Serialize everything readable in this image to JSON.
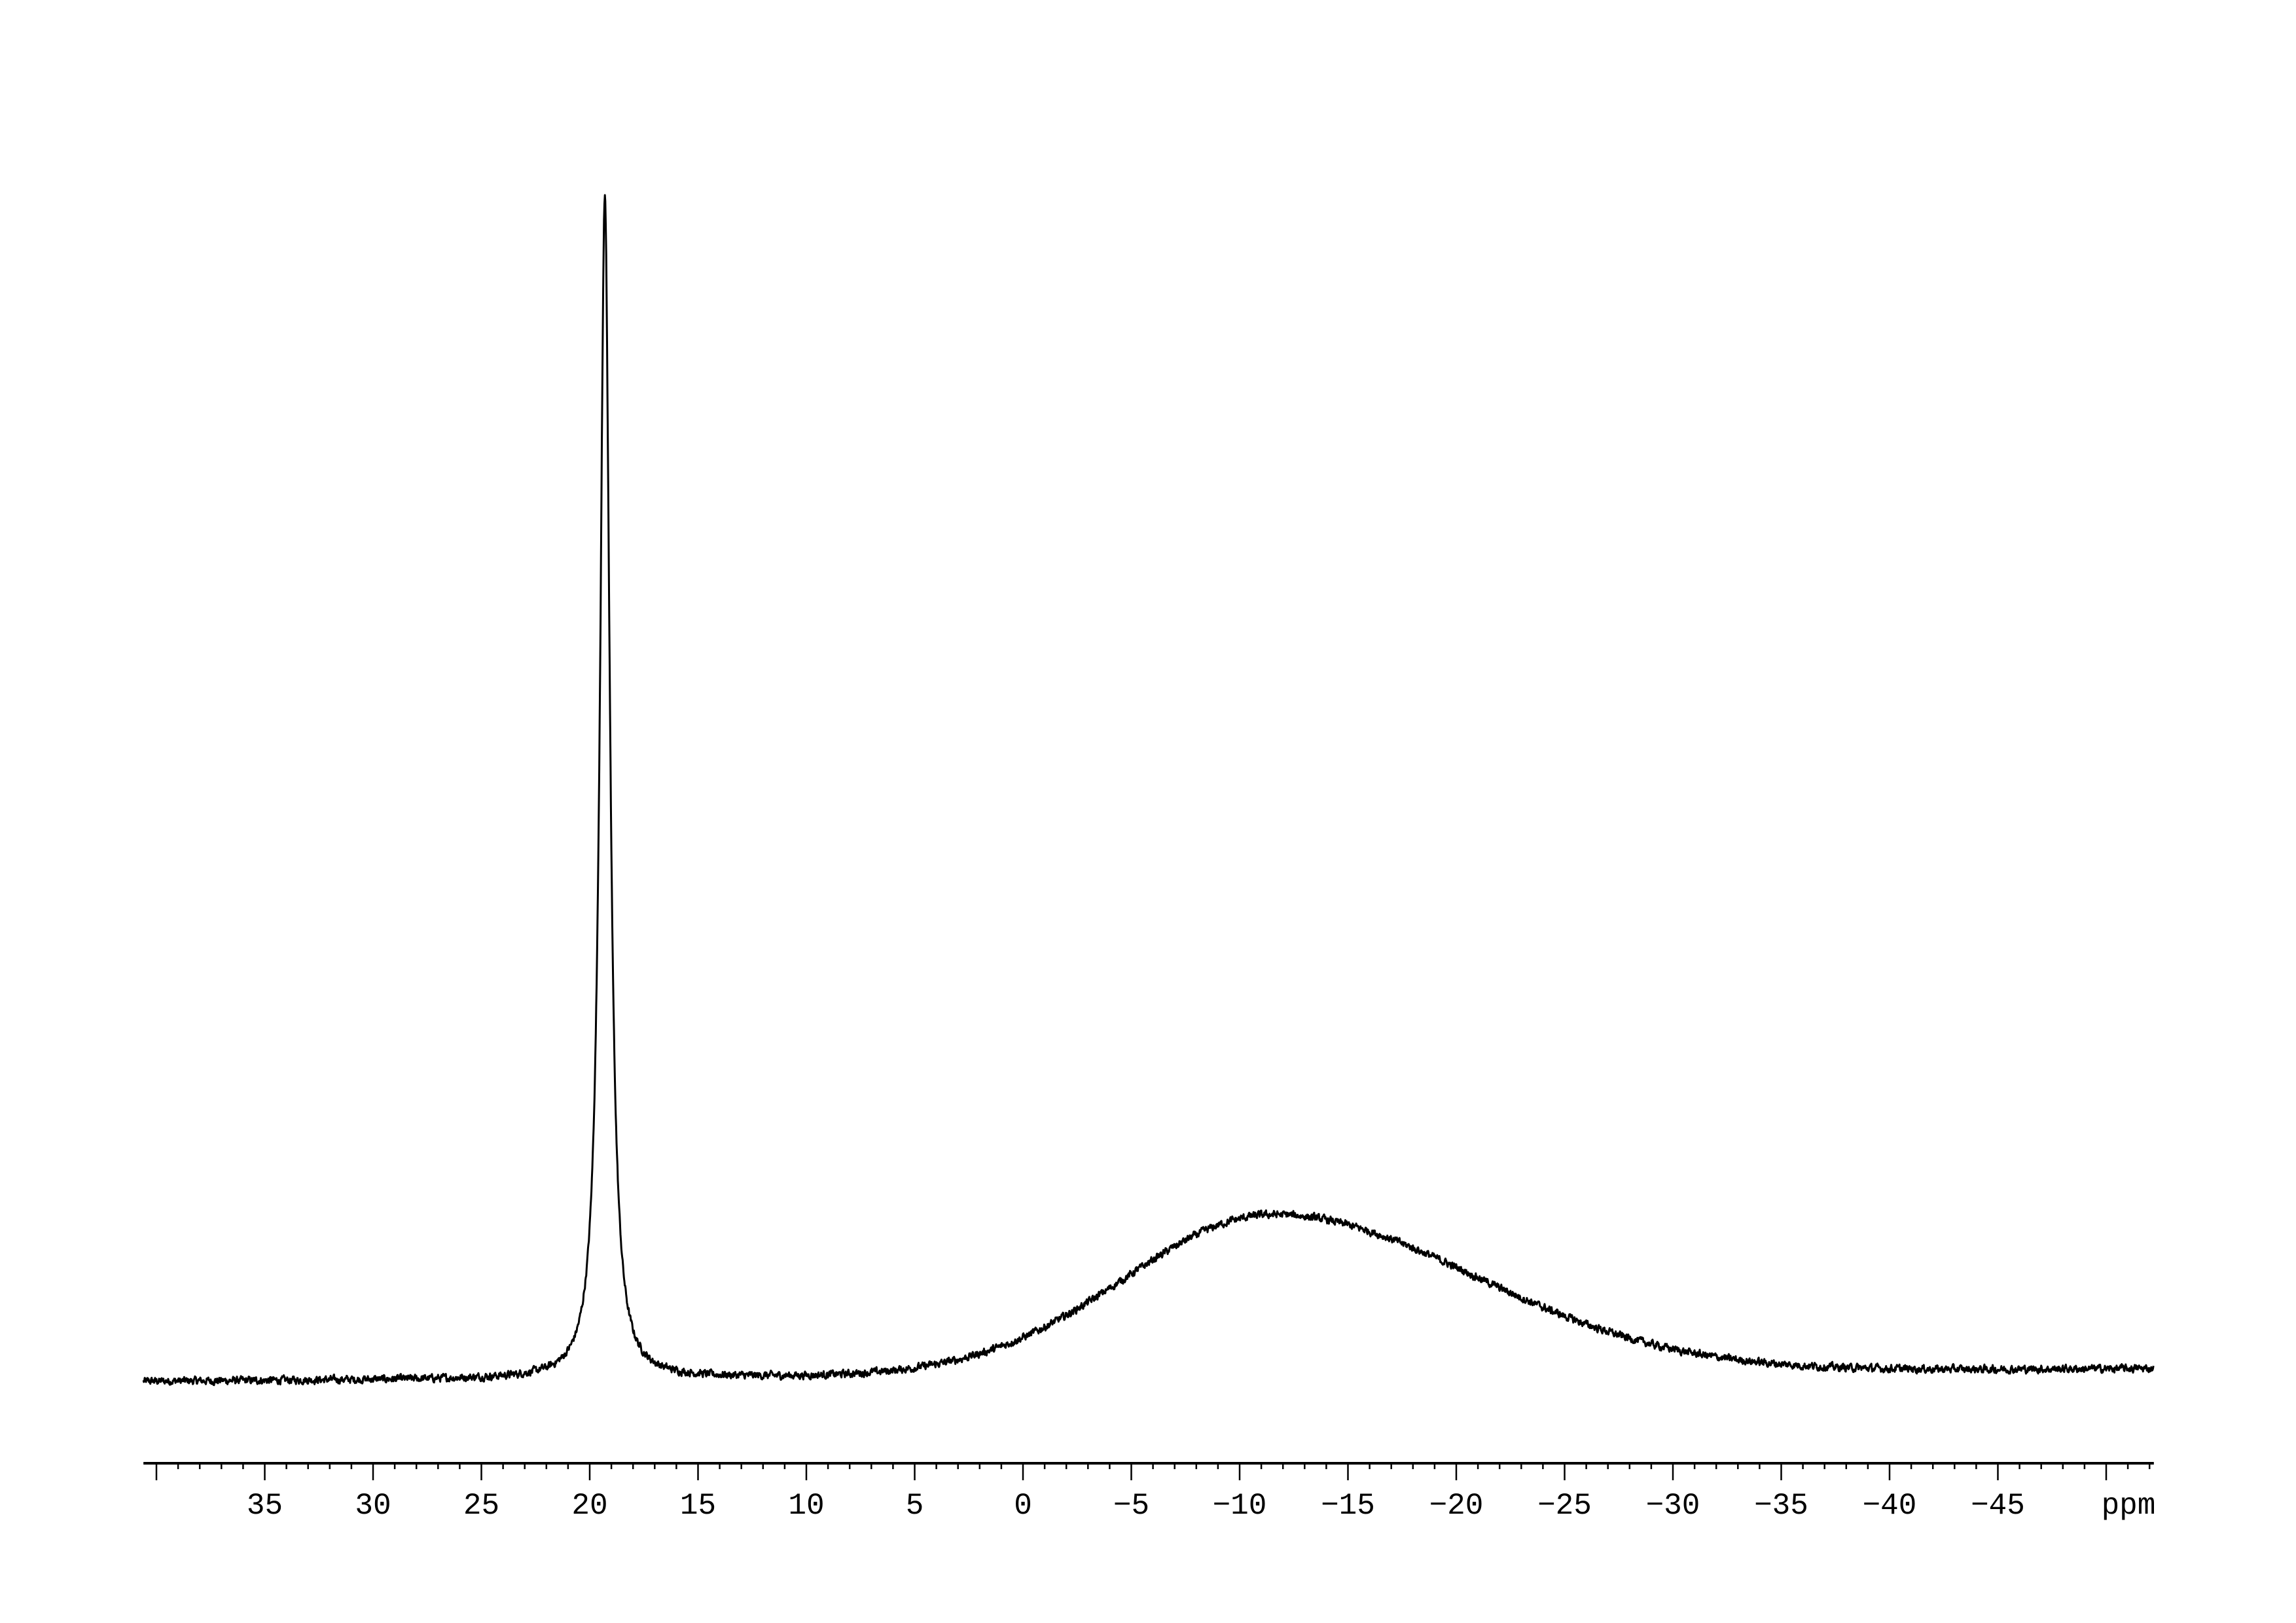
{
  "chart_data": {
    "type": "line",
    "title": "",
    "xlabel": "ppm",
    "ylabel": "",
    "xlim": [
      40.6,
      -52.2
    ],
    "x_reversed": true,
    "grid": false,
    "legend": "none",
    "line_color": "#000000",
    "x_ticks_major": [
      35,
      30,
      25,
      20,
      15,
      10,
      5,
      0,
      -5,
      -10,
      -15,
      -20,
      -25,
      -30,
      -35,
      -40,
      -45
    ],
    "x_tick_labels": [
      "35",
      "30",
      "25",
      "20",
      "15",
      "10",
      "5",
      "0",
      "−5",
      "−10",
      "−15",
      "−20",
      "−25",
      "−30",
      "−35",
      "−40",
      "−45"
    ],
    "x_minor_step": 1,
    "series": [
      {
        "peaks": [
          {
            "shape": "lorentzian",
            "center_ppm": 19.3,
            "hwhm_ppm": 0.27,
            "relative_intensity": 100
          },
          {
            "shape": "asymmetric-gaussian",
            "center_ppm": -11.5,
            "left_hwhm_ppm": 8.0,
            "right_hwhm_ppm": 11.0,
            "relative_intensity": 13.5
          }
        ],
        "baseline_left": 0,
        "baseline_right": 1.1,
        "noise_level": 0.35
      }
    ]
  }
}
